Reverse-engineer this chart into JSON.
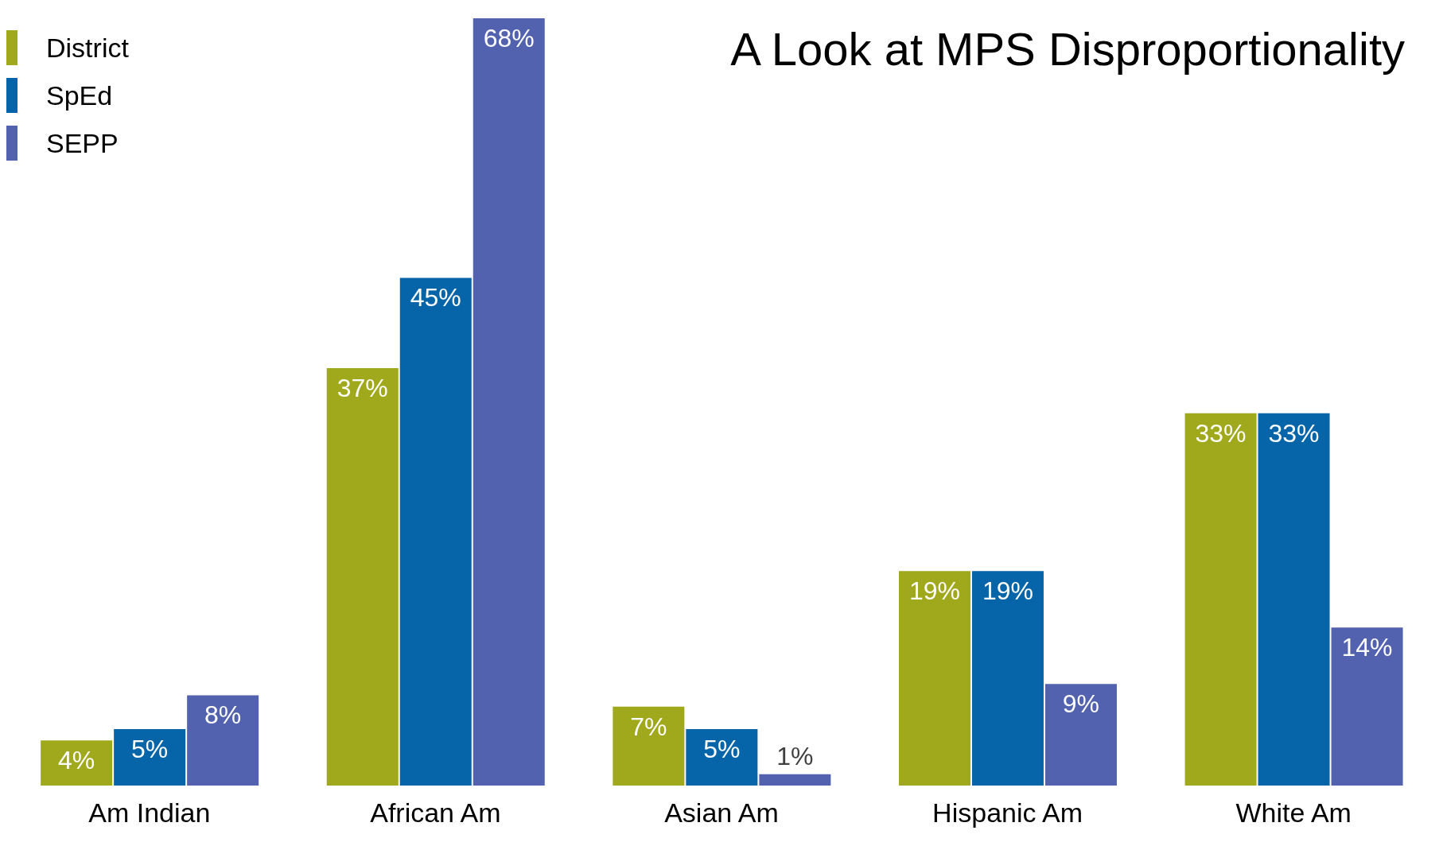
{
  "chart_data": {
    "type": "bar",
    "title": "A Look at MPS Disproportionality",
    "categories": [
      "Am Indian",
      "African Am",
      "Asian Am",
      "Hispanic Am",
      "White Am"
    ],
    "series": [
      {
        "name": "District",
        "color": "#a0a81c",
        "values": [
          4,
          37,
          7,
          19,
          33
        ],
        "value_labels": [
          "4%",
          "37%",
          "7%",
          "19%",
          "33%"
        ]
      },
      {
        "name": "SpEd",
        "color": "#0565a8",
        "values": [
          5,
          45,
          5,
          19,
          33
        ],
        "value_labels": [
          "5%",
          "45%",
          "5%",
          "19%",
          "33%"
        ]
      },
      {
        "name": "SEPP",
        "color": "#5262ae",
        "values": [
          8,
          68,
          1,
          9,
          14
        ],
        "value_labels": [
          "8%",
          "68%",
          "1%",
          "9%",
          "14%"
        ]
      }
    ],
    "legend": "top left"
  }
}
